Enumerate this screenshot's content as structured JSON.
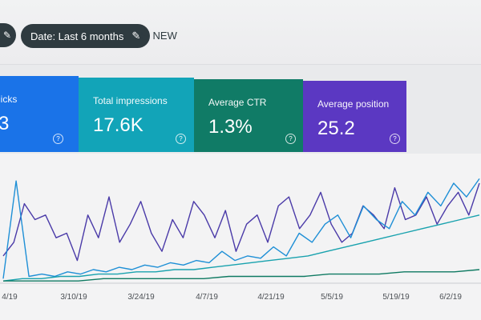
{
  "toolbar": {
    "date_filter_label": "Date: Last 6 months",
    "new_label": "NEW"
  },
  "metrics": [
    {
      "label": "licks",
      "value": "3",
      "color": "#1a73e8"
    },
    {
      "label": "Total impressions",
      "value": "17.6K",
      "color": "#12a4b8"
    },
    {
      "label": "Average CTR",
      "value": "1.3%",
      "color": "#107b66"
    },
    {
      "label": "Average position",
      "value": "25.2",
      "color": "#5b38c2"
    }
  ],
  "icons": {
    "edit": "pencil-icon",
    "add": "plus-icon",
    "help": "help-circle-icon"
  },
  "chart_data": {
    "type": "line",
    "x_ticks": [
      "4/19",
      "3/10/19",
      "3/24/19",
      "4/7/19",
      "4/21/19",
      "5/5/19",
      "5/19/19",
      "6/2/19"
    ],
    "series": [
      {
        "color": "#4a3aa8",
        "values": [
          12,
          18,
          35,
          28,
          30,
          20,
          22,
          10,
          30,
          20,
          38,
          18,
          26,
          36,
          22,
          14,
          28,
          20,
          36,
          30,
          20,
          32,
          14,
          26,
          30,
          18,
          34,
          38,
          24,
          30,
          40,
          26,
          18,
          22,
          34,
          30,
          24,
          42,
          28,
          30,
          38,
          26,
          34,
          40,
          30,
          44
        ]
      },
      {
        "color": "#1e8fd6",
        "values": [
          2,
          45,
          3,
          4,
          3,
          5,
          4,
          6,
          5,
          7,
          6,
          8,
          7,
          9,
          8,
          10,
          9,
          14,
          10,
          12,
          11,
          16,
          12,
          22,
          18,
          26,
          30,
          20,
          34,
          28,
          24,
          36,
          30,
          40,
          34,
          44,
          38,
          46
        ]
      },
      {
        "color": "#19a2ae",
        "values": [
          1,
          2,
          2,
          3,
          3,
          4,
          4,
          5,
          5,
          6,
          6,
          7,
          8,
          9,
          10,
          11,
          12,
          14,
          16,
          18,
          20,
          22,
          24,
          26,
          28,
          30
        ]
      },
      {
        "color": "#0f7a62",
        "values": [
          1,
          1,
          1,
          1,
          2,
          2,
          2,
          2,
          2,
          3,
          3,
          3,
          3,
          4,
          4,
          4,
          5,
          5,
          5,
          6
        ]
      }
    ]
  }
}
